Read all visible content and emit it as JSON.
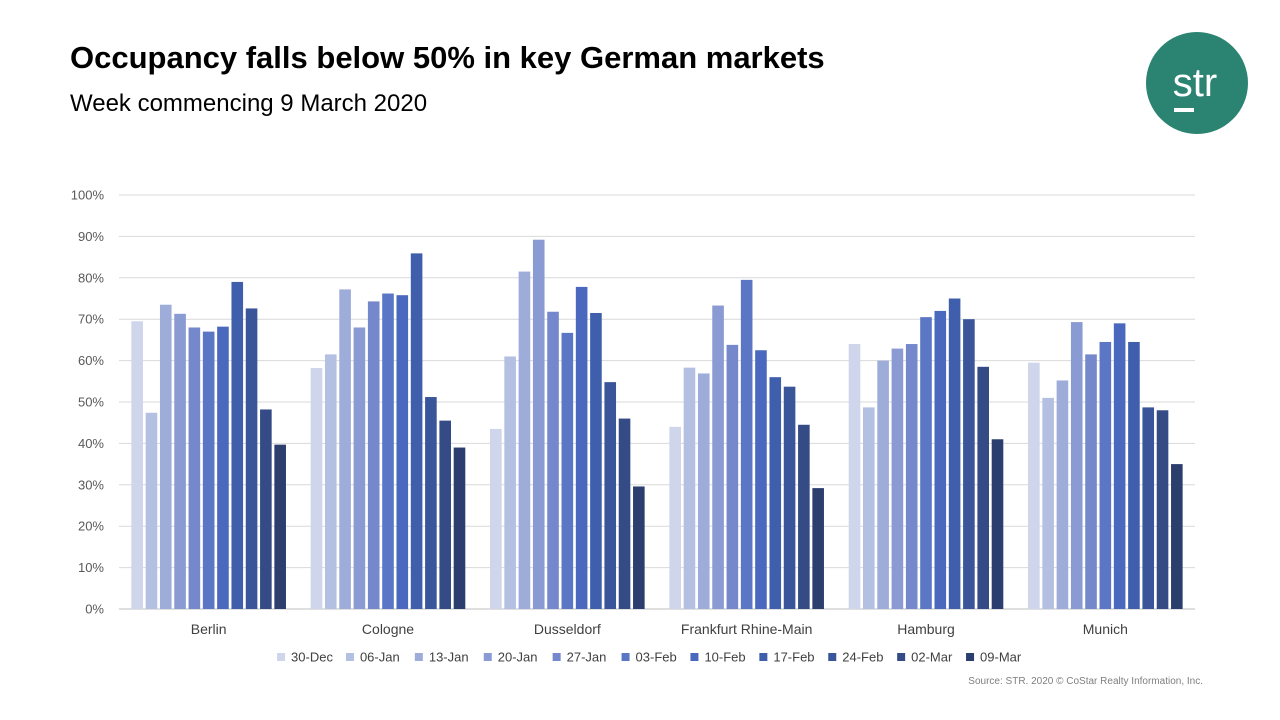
{
  "header": {
    "title": "Occupancy falls below 50% in key German markets",
    "subtitle": "Week commencing 9 March 2020"
  },
  "logo": {
    "text": "str",
    "color": "#2b8471"
  },
  "source": "Source: STR. 2020 © CoStar Realty Information, Inc.",
  "chart_data": {
    "type": "bar",
    "categories": [
      "Berlin",
      "Cologne",
      "Dusseldorf",
      "Frankfurt Rhine-Main",
      "Hamburg",
      "Munich"
    ],
    "ylim": [
      0,
      100
    ],
    "yticks": [
      "0%",
      "10%",
      "20%",
      "30%",
      "40%",
      "50%",
      "60%",
      "70%",
      "80%",
      "90%",
      "100%"
    ],
    "grid": true,
    "legend_position": "bottom",
    "series": [
      {
        "name": "30-Dec",
        "color": "#cfd5ea",
        "values": [
          69.5,
          58.2,
          43.5,
          44.0,
          64.0,
          59.5
        ]
      },
      {
        "name": "06-Jan",
        "color": "#b4c0e2",
        "values": [
          47.4,
          61.5,
          61.0,
          58.3,
          48.7,
          51.0
        ]
      },
      {
        "name": "13-Jan",
        "color": "#9dacd9",
        "values": [
          73.5,
          77.2,
          81.5,
          56.9,
          60.0,
          55.2
        ]
      },
      {
        "name": "20-Jan",
        "color": "#8a9ad3",
        "values": [
          71.3,
          68.0,
          89.2,
          73.3,
          62.9,
          69.3
        ]
      },
      {
        "name": "27-Jan",
        "color": "#7588cc",
        "values": [
          68.0,
          74.3,
          71.8,
          63.8,
          64.0,
          61.5
        ]
      },
      {
        "name": "03-Feb",
        "color": "#5a76c5",
        "values": [
          67.0,
          76.2,
          66.7,
          79.5,
          70.5,
          64.5
        ]
      },
      {
        "name": "10-Feb",
        "color": "#4a68bd",
        "values": [
          68.2,
          75.8,
          77.8,
          62.5,
          72.0,
          69.0
        ]
      },
      {
        "name": "17-Feb",
        "color": "#3f5fad",
        "values": [
          79.0,
          85.9,
          71.5,
          56.0,
          75.0,
          64.5
        ]
      },
      {
        "name": "24-Feb",
        "color": "#3a5599",
        "values": [
          72.6,
          51.2,
          54.8,
          53.7,
          70.0,
          48.7
        ]
      },
      {
        "name": "02-Mar",
        "color": "#344b86",
        "values": [
          48.2,
          45.5,
          46.0,
          44.5,
          58.5,
          48.0
        ]
      },
      {
        "name": "09-Mar",
        "color": "#2c3e6e",
        "values": [
          39.7,
          39.0,
          29.6,
          29.2,
          41.0,
          35.0
        ]
      }
    ]
  }
}
